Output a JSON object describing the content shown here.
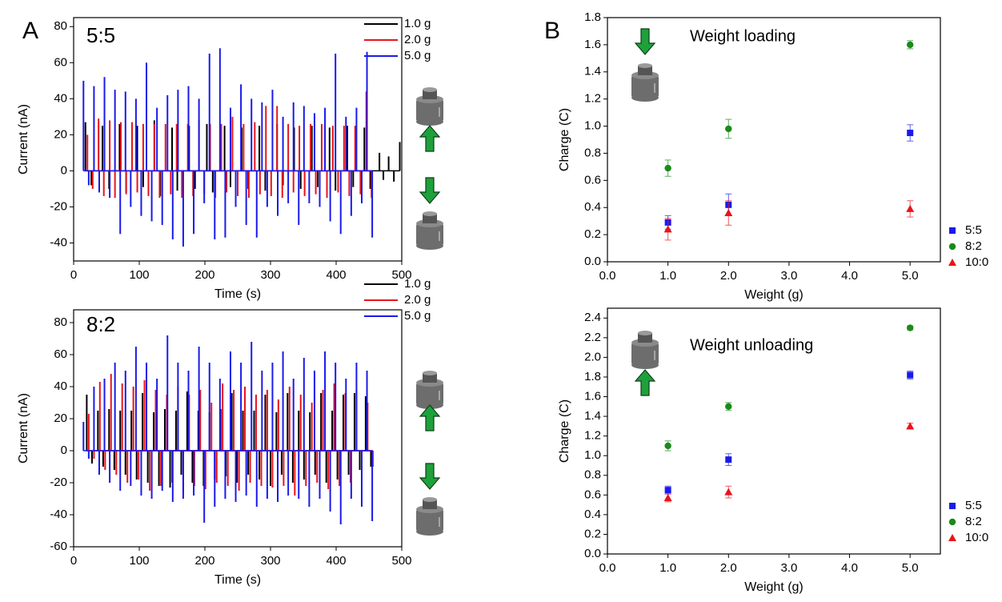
{
  "panel_labels": [
    "A",
    "B"
  ],
  "chart_data": [
    {
      "type": "spike",
      "annotation": "5:5",
      "xlabel": "Time (s)",
      "ylabel": "Current (nA)",
      "xlim": [
        0,
        500
      ],
      "xticks": [
        0,
        100,
        200,
        300,
        400,
        500
      ],
      "ylim": [
        -50,
        85
      ],
      "yticks": [
        -40,
        -20,
        0,
        20,
        40,
        60,
        80
      ],
      "series": [
        {
          "name": "1.0 g",
          "color": "#000000",
          "x": [
            18,
            27,
            44,
            54,
            70,
            80,
            97,
            106,
            123,
            132,
            150,
            158,
            176,
            185,
            203,
            212,
            230,
            239,
            256,
            266,
            283,
            292,
            310,
            319,
            336,
            346,
            363,
            372,
            390,
            399,
            417,
            426,
            443,
            452,
            466,
            472,
            480,
            488,
            497
          ],
          "values": [
            27,
            -8,
            25,
            -10,
            26,
            -12,
            25,
            -9,
            28,
            -14,
            24,
            -11,
            25,
            -10,
            26,
            -12,
            25,
            -9,
            24,
            -10,
            25,
            -11,
            26,
            -8,
            24,
            -10,
            25,
            -9,
            24,
            -11,
            25,
            -9,
            24,
            -10,
            10,
            -5,
            8,
            -6,
            16
          ]
        },
        {
          "name": "2.0 g",
          "color": "#e8141b",
          "x": [
            21,
            29,
            38,
            46,
            55,
            63,
            72,
            80,
            89,
            97,
            106,
            114,
            123,
            131,
            140,
            148,
            157,
            165,
            174,
            182,
            191,
            199,
            208,
            216,
            225,
            233,
            242,
            250,
            259,
            267,
            276,
            284,
            293,
            301,
            310,
            318,
            327,
            335,
            344,
            352,
            361,
            369,
            378,
            386,
            395,
            403,
            412,
            420,
            429,
            437,
            446,
            454
          ],
          "values": [
            20,
            -10,
            29,
            -14,
            28,
            -15,
            27,
            -13,
            27,
            -12,
            26,
            -14,
            26,
            -15,
            26,
            -13,
            26,
            -15,
            26,
            -14,
            28,
            -13,
            26,
            -15,
            26,
            -12,
            30,
            -14,
            26,
            -15,
            27,
            -13,
            36,
            -14,
            36,
            -15,
            26,
            -12,
            25,
            -14,
            26,
            -13,
            26,
            -15,
            25,
            -12,
            25,
            -14,
            25,
            -13,
            44,
            -15
          ]
        },
        {
          "name": "5.0 g",
          "color": "#1a1aeb",
          "x": [
            15,
            23,
            31,
            39,
            47,
            55,
            63,
            71,
            79,
            87,
            95,
            103,
            111,
            119,
            127,
            135,
            143,
            151,
            159,
            167,
            175,
            183,
            191,
            199,
            207,
            215,
            223,
            231,
            239,
            247,
            255,
            263,
            271,
            279,
            287,
            295,
            303,
            311,
            319,
            327,
            335,
            343,
            351,
            359,
            367,
            375,
            383,
            391,
            399,
            407,
            415,
            423,
            431,
            439,
            447,
            455
          ],
          "values": [
            50,
            -8,
            47,
            -12,
            52,
            -15,
            45,
            -35,
            44,
            -20,
            40,
            -25,
            60,
            -28,
            35,
            -30,
            42,
            -38,
            45,
            -42,
            47,
            -35,
            40,
            -18,
            65,
            -38,
            68,
            -37,
            35,
            -20,
            48,
            -30,
            40,
            -37,
            38,
            -20,
            45,
            -25,
            30,
            -18,
            38,
            -30,
            36,
            -18,
            32,
            -20,
            35,
            -28,
            65,
            -35,
            30,
            -25,
            35,
            -18,
            66,
            -37
          ]
        }
      ]
    },
    {
      "type": "spike",
      "annotation": "8:2",
      "xlabel": "Time (s)",
      "ylabel": "Current (nA)",
      "xlim": [
        0,
        500
      ],
      "xticks": [
        0,
        100,
        200,
        300,
        400,
        500
      ],
      "ylim": [
        -60,
        88
      ],
      "yticks": [
        -60,
        -40,
        -20,
        0,
        20,
        40,
        60,
        80
      ],
      "series": [
        {
          "name": "1.0 g",
          "color": "#000000",
          "x": [
            20,
            28,
            37,
            45,
            54,
            62,
            71,
            79,
            88,
            96,
            105,
            113,
            122,
            130,
            139,
            147,
            156,
            164,
            173,
            181,
            190,
            198,
            207,
            215,
            224,
            232,
            241,
            249,
            258,
            266,
            275,
            283,
            292,
            300,
            309,
            317,
            326,
            334,
            343,
            351,
            360,
            368,
            377,
            385,
            394,
            402,
            411,
            419,
            428,
            436,
            445,
            453
          ],
          "values": [
            35,
            -8,
            25,
            -10,
            26,
            -12,
            25,
            -15,
            25,
            -18,
            36,
            -20,
            24,
            -22,
            26,
            -23,
            25,
            -15,
            37,
            -20,
            25,
            -22,
            24,
            -18,
            26,
            -16,
            36,
            -20,
            25,
            -15,
            25,
            -18,
            35,
            -22,
            24,
            -15,
            36,
            -20,
            25,
            -18,
            24,
            -15,
            36,
            -20,
            25,
            -18,
            35,
            -15,
            36,
            -12,
            34,
            -10
          ]
        },
        {
          "name": "2.0 g",
          "color": "#e8141b",
          "x": [
            23,
            31,
            40,
            48,
            57,
            65,
            74,
            82,
            91,
            99,
            108,
            116,
            125,
            133,
            142,
            150,
            159,
            167,
            176,
            184,
            193,
            201,
            210,
            218,
            227,
            235,
            244,
            252,
            261,
            269,
            278,
            286,
            295,
            303,
            312,
            320,
            329,
            337,
            346,
            354,
            363,
            371,
            380,
            388,
            397,
            405,
            414,
            422,
            431,
            439,
            448,
            456
          ],
          "values": [
            23,
            -5,
            43,
            -12,
            48,
            -15,
            42,
            -20,
            40,
            -18,
            44,
            -25,
            38,
            -22,
            35,
            -20,
            40,
            -26,
            35,
            -22,
            38,
            -24,
            30,
            -20,
            42,
            -22,
            38,
            -25,
            40,
            -20,
            35,
            -22,
            38,
            -23,
            32,
            -22,
            40,
            -28,
            35,
            -22,
            30,
            -20,
            38,
            -24,
            42,
            -22,
            36,
            -20,
            38,
            -15,
            30,
            -10
          ]
        },
        {
          "name": "5.0 g",
          "color": "#1a1aeb",
          "x": [
            15,
            23,
            31,
            39,
            47,
            55,
            63,
            71,
            79,
            87,
            95,
            103,
            111,
            119,
            127,
            135,
            143,
            151,
            159,
            167,
            175,
            183,
            191,
            199,
            207,
            215,
            223,
            231,
            239,
            247,
            255,
            263,
            271,
            279,
            287,
            295,
            303,
            311,
            319,
            327,
            335,
            343,
            351,
            359,
            367,
            375,
            383,
            391,
            399,
            407,
            415,
            423,
            431,
            439,
            447,
            455
          ],
          "values": [
            18,
            -5,
            40,
            -15,
            45,
            -20,
            55,
            -25,
            50,
            -22,
            65,
            -28,
            55,
            -30,
            45,
            -25,
            72,
            -32,
            55,
            -30,
            50,
            -28,
            65,
            -45,
            55,
            -35,
            45,
            -30,
            62,
            -32,
            55,
            -28,
            68,
            -35,
            50,
            -30,
            55,
            -32,
            62,
            -28,
            45,
            -30,
            58,
            -35,
            50,
            -30,
            62,
            -38,
            55,
            -46,
            45,
            -30,
            55,
            -35,
            50,
            -44
          ]
        }
      ]
    },
    {
      "type": "scatter",
      "annotation": "Weight loading",
      "xlabel": "Weight (g)",
      "ylabel": "Charge (C)",
      "xlim": [
        0,
        5.5
      ],
      "xticks": [
        {
          "value": 0,
          "label": "0.0"
        },
        {
          "value": 1,
          "label": "1.0"
        },
        {
          "value": 2,
          "label": "2.0"
        },
        {
          "value": 3,
          "label": "3.0"
        },
        {
          "value": 4,
          "label": "4.0"
        },
        {
          "value": 5,
          "label": "5.0"
        }
      ],
      "ylim": [
        0,
        1.8
      ],
      "yticks": [
        {
          "value": 0,
          "label": "0.0"
        },
        0.2,
        0.4,
        0.6,
        0.8,
        {
          "value": 1,
          "label": "1.0"
        },
        1.2,
        1.4,
        1.6,
        1.8
      ],
      "series": [
        {
          "name": "5:5",
          "color": "#1a1aeb",
          "marker": "square",
          "x": [
            1,
            2,
            5
          ],
          "values": [
            0.29,
            0.42,
            0.95
          ],
          "errors": [
            0.05,
            0.08,
            0.06
          ]
        },
        {
          "name": "8:2",
          "color": "#1a8a1a",
          "marker": "circle",
          "x": [
            1,
            2,
            5
          ],
          "values": [
            0.69,
            0.98,
            1.6
          ],
          "errors": [
            0.06,
            0.07,
            0.03
          ]
        },
        {
          "name": "10:0",
          "color": "#e8141b",
          "marker": "triangle",
          "x": [
            1,
            2,
            5
          ],
          "values": [
            0.24,
            0.36,
            0.39
          ],
          "errors": [
            0.08,
            0.09,
            0.06
          ]
        }
      ]
    },
    {
      "type": "scatter",
      "annotation": "Weight unloading",
      "xlabel": "Weight (g)",
      "ylabel": "Charge (C)",
      "xlim": [
        0,
        5.5
      ],
      "xticks": [
        {
          "value": 0,
          "label": "0.0"
        },
        {
          "value": 1,
          "label": "1.0"
        },
        {
          "value": 2,
          "label": "2.0"
        },
        {
          "value": 3,
          "label": "3.0"
        },
        {
          "value": 4,
          "label": "4.0"
        },
        {
          "value": 5,
          "label": "5.0"
        }
      ],
      "ylim": [
        0,
        2.5
      ],
      "yticks": [
        {
          "value": 0,
          "label": "0.0"
        },
        0.2,
        0.4,
        0.6,
        0.8,
        {
          "value": 1,
          "label": "1.0"
        },
        1.2,
        1.4,
        1.6,
        1.8,
        {
          "value": 2,
          "label": "2.0"
        },
        2.2,
        2.4
      ],
      "series": [
        {
          "name": "5:5",
          "color": "#1a1aeb",
          "marker": "square",
          "x": [
            1,
            2,
            5
          ],
          "values": [
            0.65,
            0.96,
            1.82
          ],
          "errors": [
            0.04,
            0.06,
            0.04
          ]
        },
        {
          "name": "8:2",
          "color": "#1a8a1a",
          "marker": "circle",
          "x": [
            1,
            2,
            5
          ],
          "values": [
            1.1,
            1.5,
            2.3
          ],
          "errors": [
            0.05,
            0.04,
            0.02
          ]
        },
        {
          "name": "10:0",
          "color": "#e8141b",
          "marker": "triangle",
          "x": [
            1,
            2,
            5
          ],
          "values": [
            0.57,
            0.63,
            1.3
          ],
          "errors": [
            0.04,
            0.06,
            0.03
          ]
        }
      ]
    }
  ]
}
